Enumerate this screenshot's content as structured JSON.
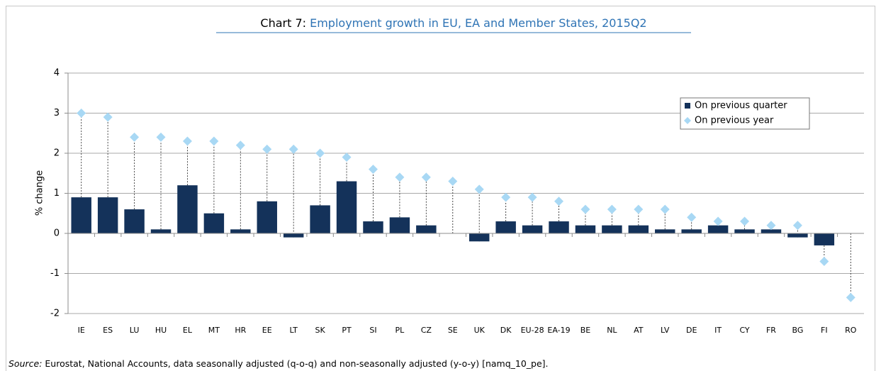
{
  "chart_data": {
    "type": "bar",
    "chart_number": "Chart 7:",
    "title": "Employment growth in EU, EA and Member States, 2015Q2",
    "y_label": "% change",
    "source_label": "Source:",
    "source": "Eurostat, National Accounts, data seasonally adjusted (q-o-q) and non-seasonally adjusted (y-o-y) [namq_10_pe].",
    "categories": [
      "IE",
      "ES",
      "LU",
      "HU",
      "EL",
      "MT",
      "HR",
      "EE",
      "LT",
      "SK",
      "PT",
      "SI",
      "PL",
      "CZ",
      "SE",
      "UK",
      "DK",
      "EU-28",
      "EA-19",
      "BE",
      "NL",
      "AT",
      "LV",
      "DE",
      "IT",
      "CY",
      "FR",
      "BG",
      "FI",
      "RO"
    ],
    "series": [
      {
        "name": "On previous quarter",
        "color": "#14325a",
        "marker": "bar",
        "values": [
          0.9,
          0.9,
          0.6,
          0.1,
          1.2,
          0.5,
          0.1,
          0.8,
          -0.1,
          0.7,
          1.3,
          0.3,
          0.4,
          0.2,
          0,
          -0.2,
          0.3,
          0.2,
          0.3,
          0.2,
          0.2,
          0.2,
          0.1,
          0.1,
          0.2,
          0.1,
          0.1,
          -0.1,
          -0.3,
          null
        ]
      },
      {
        "name": "On previous year",
        "color": "#a8d8f4",
        "marker": "diamond",
        "values": [
          3.0,
          2.9,
          2.4,
          2.4,
          2.3,
          2.3,
          2.2,
          2.1,
          2.1,
          2.0,
          1.9,
          1.6,
          1.4,
          1.4,
          1.3,
          1.1,
          0.9,
          0.9,
          0.8,
          0.6,
          0.6,
          0.6,
          0.6,
          0.4,
          0.3,
          0.3,
          0.2,
          0.2,
          -0.7,
          -1.6
        ]
      }
    ],
    "ylim": [
      -2,
      4
    ],
    "yticks": [
      -2,
      -1,
      0,
      1,
      2,
      3,
      4
    ],
    "grid": true,
    "legend": "upper right"
  }
}
